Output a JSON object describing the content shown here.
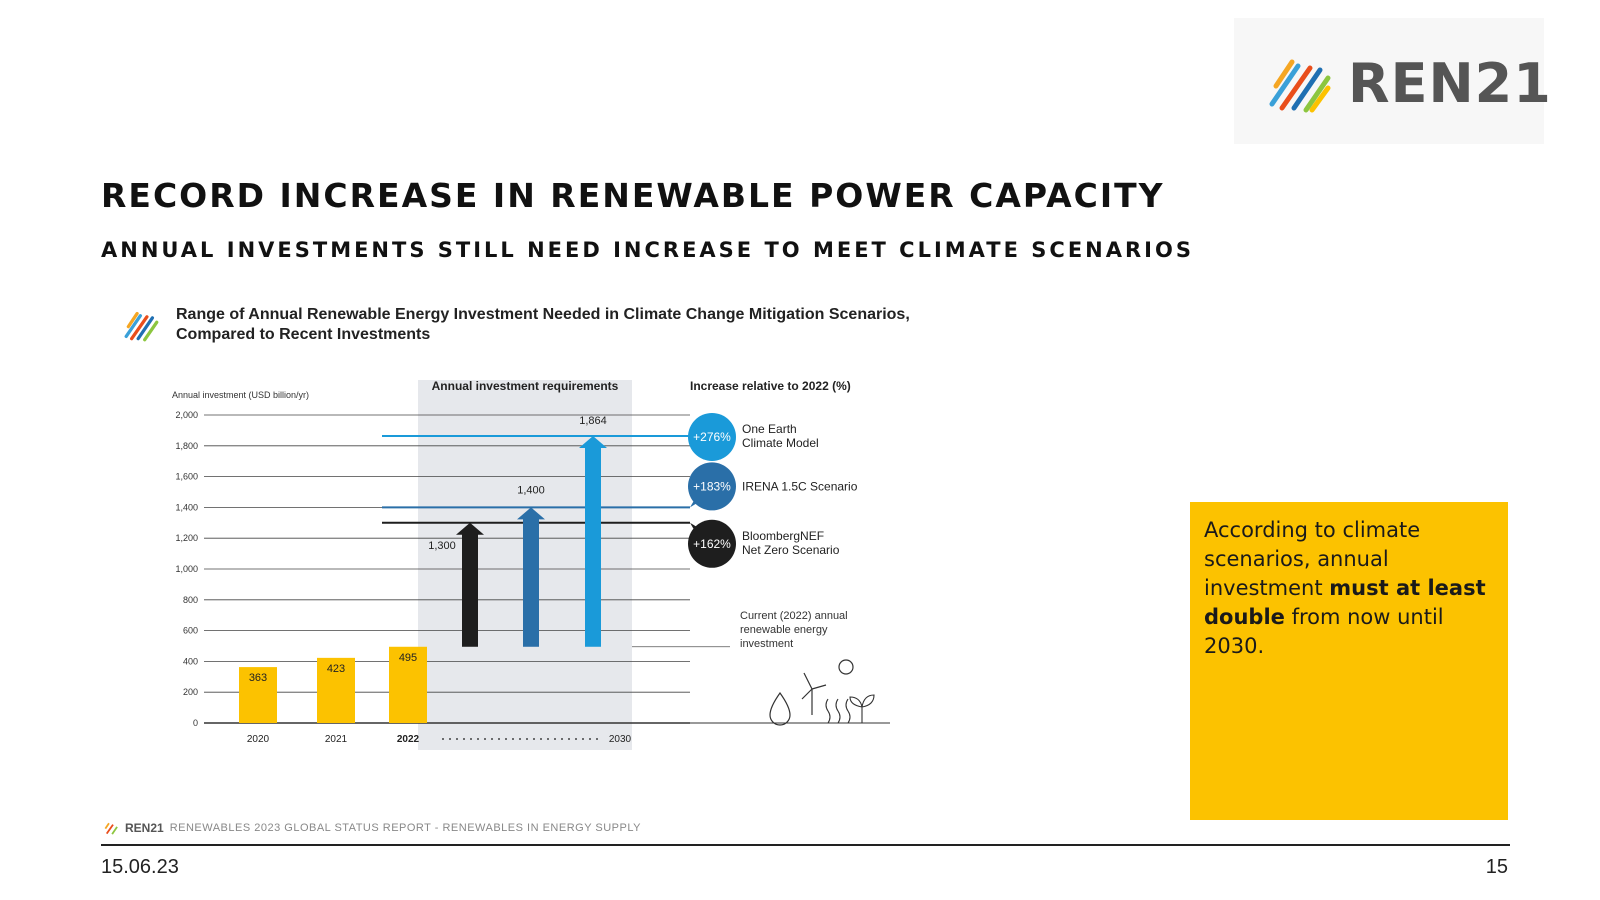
{
  "brand": {
    "name": "REN21"
  },
  "slide": {
    "title": "RECORD INCREASE IN RENEWABLE POWER CAPACITY",
    "subtitle": "ANNUAL INVESTMENTS STILL NEED INCREASE TO MEET CLIMATE SCENARIOS",
    "date": "15.06.23",
    "page_number": "15"
  },
  "figure": {
    "title_line1": "Range of Annual Renewable Energy Investment Needed in Climate Change Mitigation Scenarios,",
    "title_line2": "Compared to Recent Investments"
  },
  "callout": {
    "text_before": "According to climate scenarios, annual investment ",
    "text_bold": "must at least double",
    "text_after": " from now until 2030."
  },
  "source": {
    "brand": "REN21",
    "report": "RENEWABLES 2023 GLOBAL STATUS REPORT - RENEWABLES IN ENERGY SUPPLY"
  },
  "colors": {
    "yellow": "#fcc200",
    "black": "#1e1e1e",
    "mid_blue": "#2a6fa8",
    "light_blue": "#1a9ad9",
    "shade": "#e6e8ec"
  },
  "chart_data": {
    "type": "bar",
    "ylabel": "Annual investment (USD billion/yr)",
    "ylim": [
      0,
      2000
    ],
    "yticks": [
      0,
      200,
      400,
      600,
      800,
      1000,
      1200,
      1400,
      1600,
      1800,
      2000
    ],
    "ytick_labels": [
      "0",
      "200",
      "400",
      "600",
      "800",
      "1,000",
      "1,200",
      "1,400",
      "1,600",
      "1,800",
      "2,000"
    ],
    "historical": {
      "categories": [
        "2020",
        "2021",
        "2022"
      ],
      "values": [
        363,
        423,
        495
      ],
      "labels": [
        "363",
        "423",
        "495"
      ]
    },
    "requirements_header": "Annual investment requirements",
    "requirements_axis_end": "2030",
    "current_2022": 495,
    "scenarios": [
      {
        "name_line1": "BloombergNEF",
        "name_line2": "Net Zero Scenario",
        "value": 1300,
        "label": "1,300",
        "increase": "+162%",
        "color": "#1e1e1e"
      },
      {
        "name_line1": "IRENA 1.5C Scenario",
        "name_line2": "",
        "value": 1400,
        "label": "1,400",
        "increase": "+183%",
        "color": "#2a6fa8"
      },
      {
        "name_line1": "One Earth",
        "name_line2": "Climate Model",
        "value": 1864,
        "label": "1,864",
        "increase": "+276%",
        "color": "#1a9ad9"
      }
    ],
    "increase_header": "Increase relative to 2022 (%)",
    "current_note_line1": "Current (2022) annual",
    "current_note_line2": "renewable energy",
    "current_note_line3": "investment"
  }
}
